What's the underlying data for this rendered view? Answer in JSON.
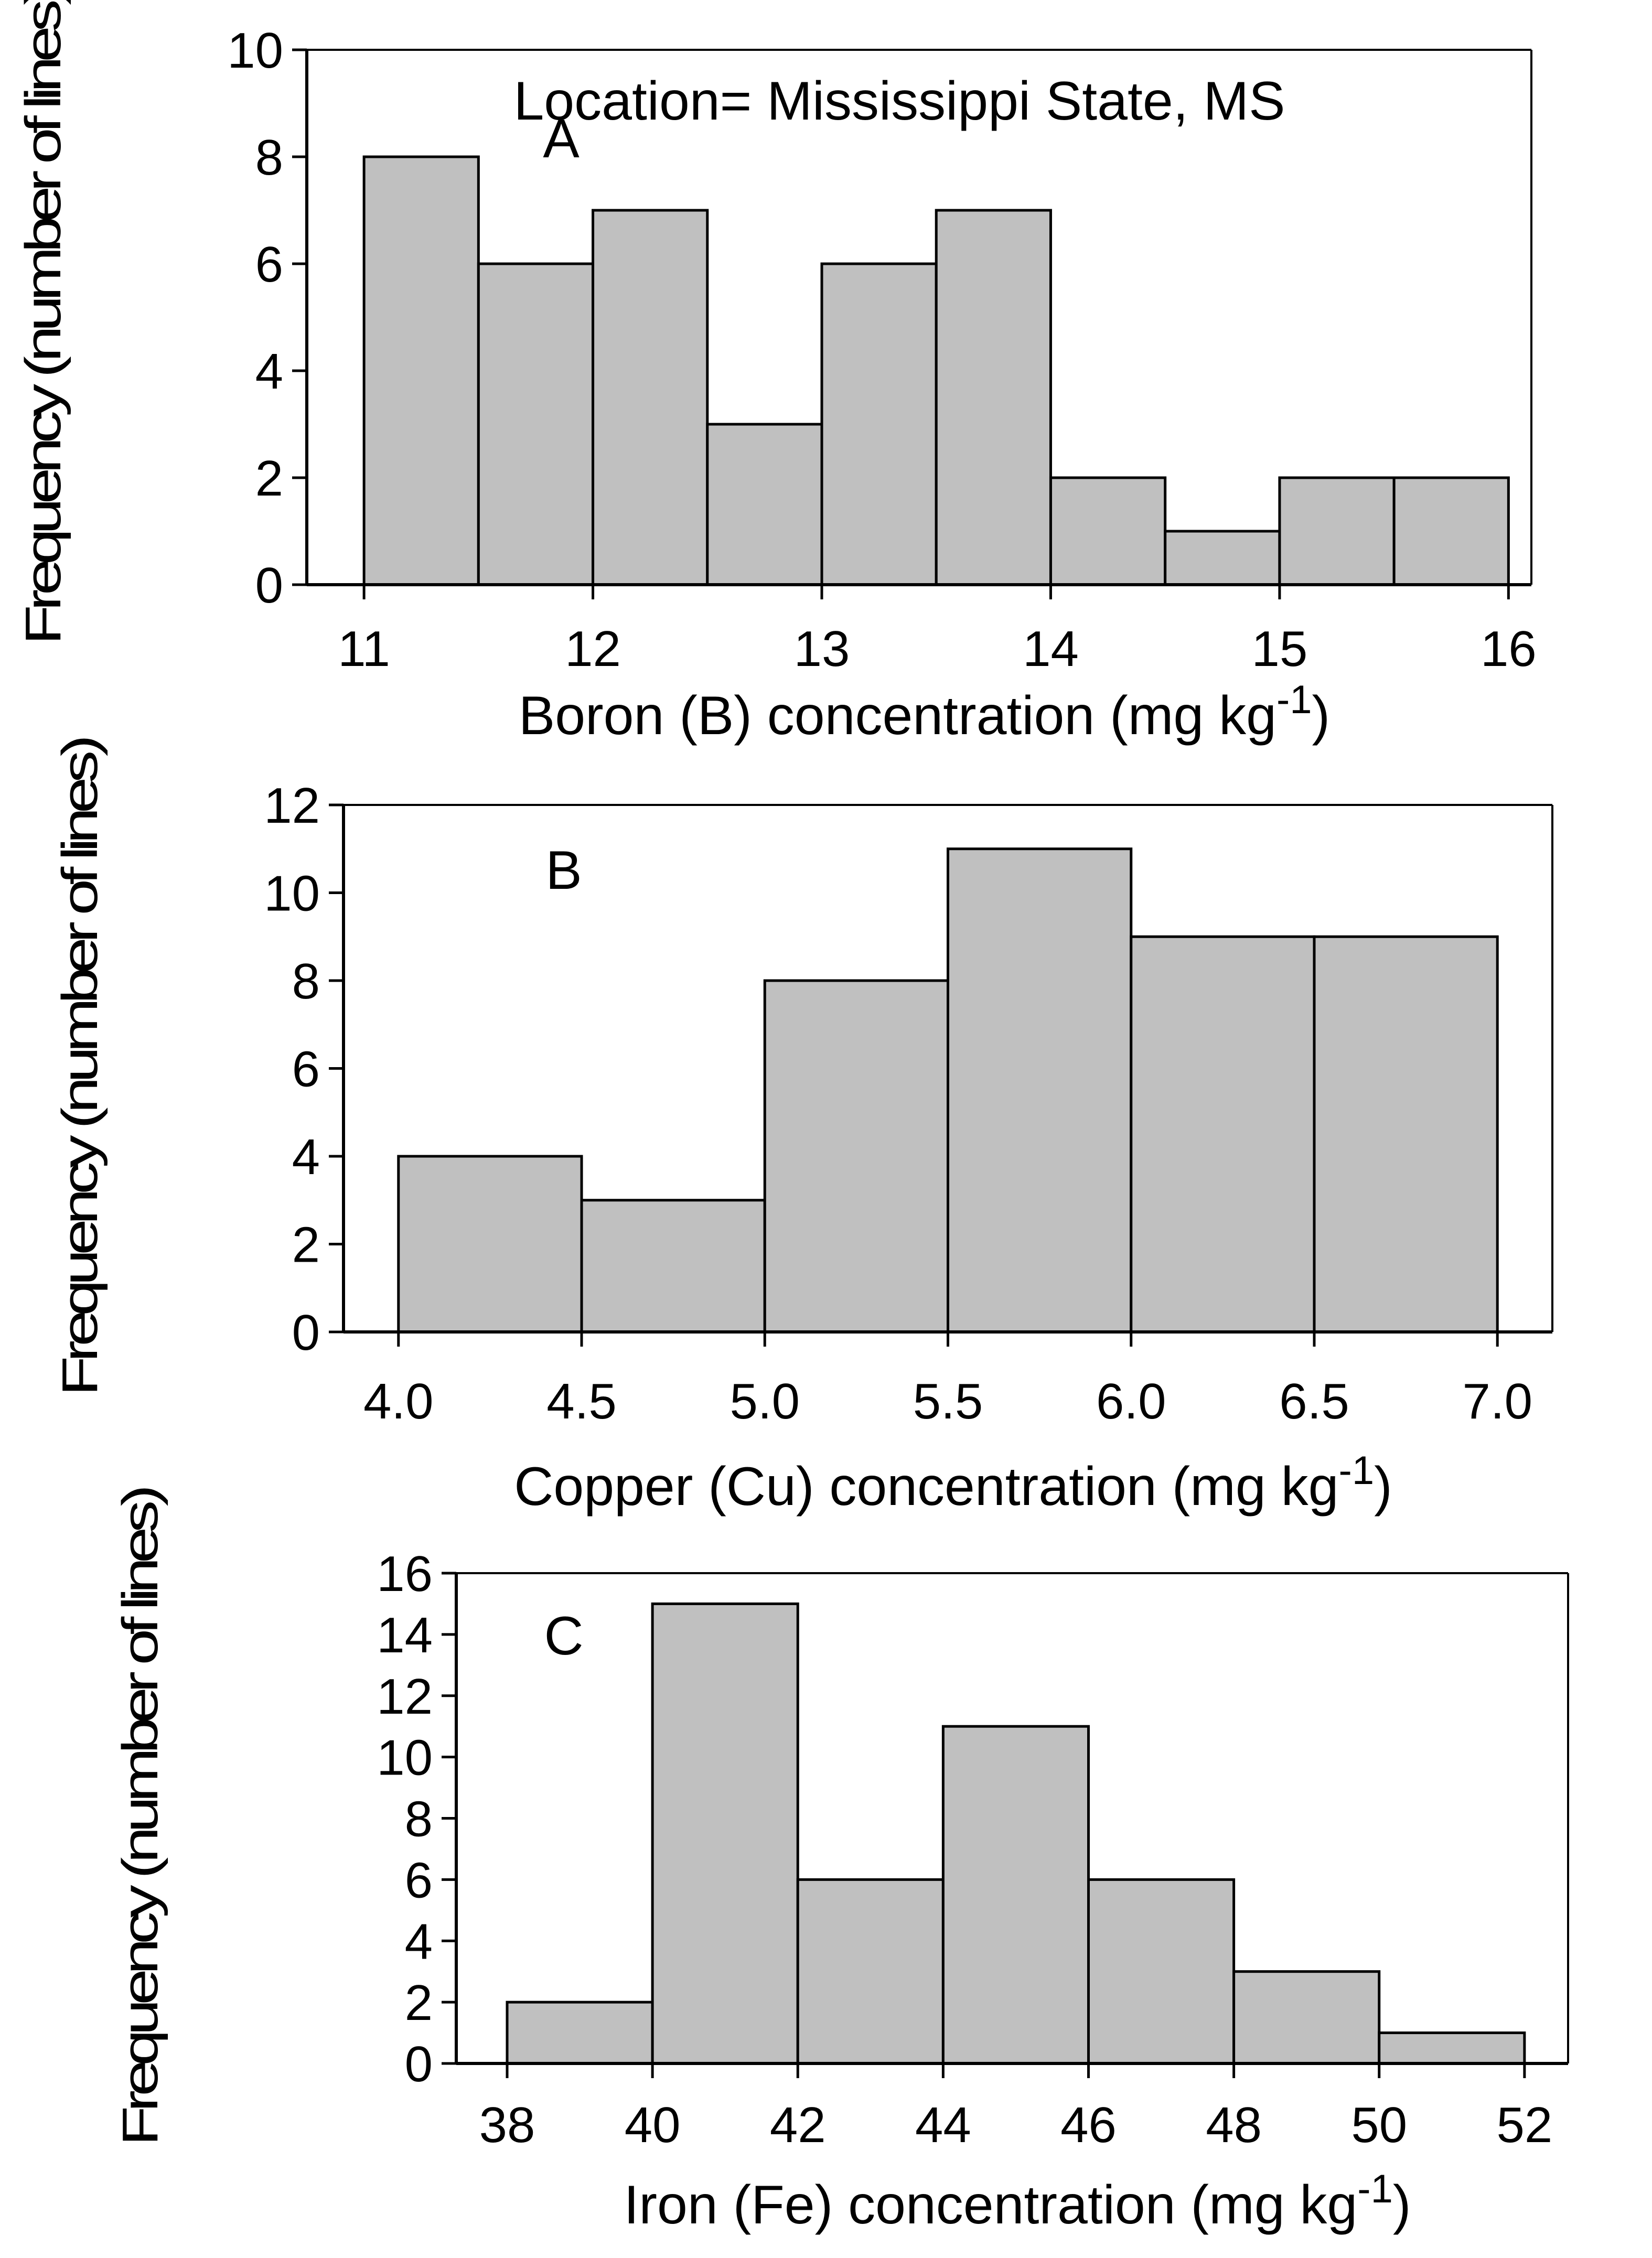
{
  "chart_data": [
    {
      "type": "bar",
      "panel_label": "A",
      "annotation": "Location= Mississippi State, MS",
      "xlabel": "Boron (B) concentration (mg kg",
      "xlabel_sup": "-1",
      "xlabel_close": ")",
      "ylabel": "Frequency (number of lines)",
      "bin_edges": [
        11,
        11.5,
        12,
        12.5,
        13,
        13.5,
        14,
        14.5,
        15,
        15.5,
        16
      ],
      "values": [
        8,
        6,
        7,
        3,
        6,
        7,
        2,
        1,
        2,
        2
      ],
      "xlim": [
        10.75,
        16.1
      ],
      "ylim": [
        0,
        10
      ],
      "xticks": [
        11,
        12,
        13,
        14,
        15,
        16
      ],
      "xtick_labels": [
        "11",
        "12",
        "13",
        "14",
        "15",
        "16"
      ],
      "yticks": [
        0,
        2,
        4,
        6,
        8,
        10
      ],
      "ytick_labels": [
        "0",
        "2",
        "4",
        "6",
        "8",
        "10"
      ]
    },
    {
      "type": "bar",
      "panel_label": "B",
      "xlabel": "Copper (Cu) concentration (mg kg",
      "xlabel_sup": "-1",
      "xlabel_close": ")",
      "ylabel": "Frequency (number of lines)",
      "bin_edges": [
        4.0,
        4.5,
        5.0,
        5.5,
        6.0,
        6.5,
        7.0
      ],
      "values": [
        4,
        3,
        8,
        11,
        9,
        9
      ],
      "xlim": [
        3.85,
        7.15
      ],
      "ylim": [
        0,
        12
      ],
      "xticks": [
        4.0,
        4.5,
        5.0,
        5.5,
        6.0,
        6.5,
        7.0
      ],
      "xtick_labels": [
        "4.0",
        "4.5",
        "5.0",
        "5.5",
        "6.0",
        "6.5",
        "7.0"
      ],
      "yticks": [
        0,
        2,
        4,
        6,
        8,
        10,
        12
      ],
      "ytick_labels": [
        "0",
        "2",
        "4",
        "6",
        "8",
        "10",
        "12"
      ]
    },
    {
      "type": "bar",
      "panel_label": "C",
      "xlabel": "Iron (Fe) concentration (mg kg",
      "xlabel_sup": "-1",
      "xlabel_close": ")",
      "ylabel": "Frequency (number of lines)",
      "bin_edges": [
        38,
        40,
        42,
        44,
        46,
        48,
        50,
        52
      ],
      "values": [
        2,
        15,
        6,
        11,
        6,
        3,
        1
      ],
      "xlim": [
        37.3,
        52.6
      ],
      "ylim": [
        0,
        16
      ],
      "xticks": [
        38,
        40,
        42,
        44,
        46,
        48,
        50,
        52
      ],
      "xtick_labels": [
        "38",
        "40",
        "42",
        "44",
        "46",
        "48",
        "50",
        "52"
      ],
      "yticks": [
        0,
        2,
        4,
        6,
        8,
        10,
        12,
        14,
        16
      ],
      "ytick_labels": [
        "0",
        "2",
        "4",
        "6",
        "8",
        "10",
        "12",
        "14",
        "16"
      ]
    }
  ],
  "colors": {
    "bar_fill": "#c0c0c0",
    "stroke": "#000000",
    "background": "#ffffff"
  }
}
